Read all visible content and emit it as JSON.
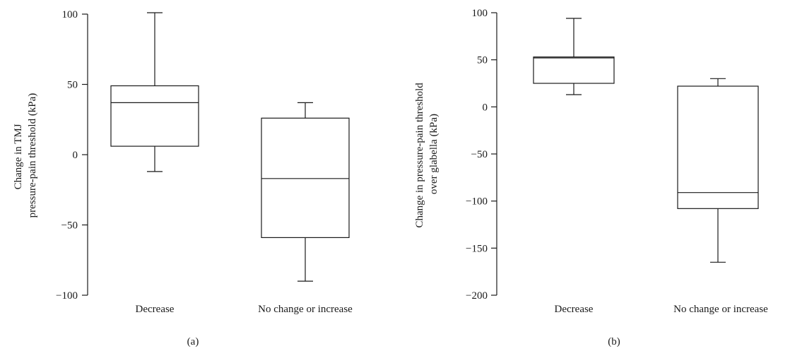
{
  "chart_data": [
    {
      "type": "box",
      "panel_label": "(a)",
      "ylabel_lines": [
        "Change in TMJ",
        "pressure-pain threshold (kPa)"
      ],
      "ylim": [
        -100,
        100
      ],
      "yticks": [
        -100,
        -50,
        0,
        50,
        100
      ],
      "categories": [
        "Decrease",
        "No change or increase"
      ],
      "boxes": [
        {
          "category": "Decrease",
          "whisker_low": -12,
          "q1": 6,
          "median": 37,
          "q3": 49,
          "whisker_high": 101
        },
        {
          "category": "No change or increase",
          "whisker_low": -90,
          "q1": -59,
          "median": -17,
          "q3": 26,
          "whisker_high": 37
        }
      ]
    },
    {
      "type": "box",
      "panel_label": "(b)",
      "ylabel_lines": [
        "Change in pressure-pain threshold",
        "over glabella (kPa)"
      ],
      "ylim": [
        -200,
        100
      ],
      "yticks": [
        -200,
        -150,
        -100,
        -50,
        0,
        50,
        100
      ],
      "categories": [
        "Decrease",
        "No change or increase"
      ],
      "boxes": [
        {
          "category": "Decrease",
          "whisker_low": 13,
          "q1": 25,
          "median": 52,
          "q3": 53,
          "whisker_high": 94
        },
        {
          "category": "No change or increase",
          "whisker_low": -165,
          "q1": -108,
          "median": -91,
          "q3": 22,
          "whisker_high": 30
        }
      ]
    }
  ]
}
